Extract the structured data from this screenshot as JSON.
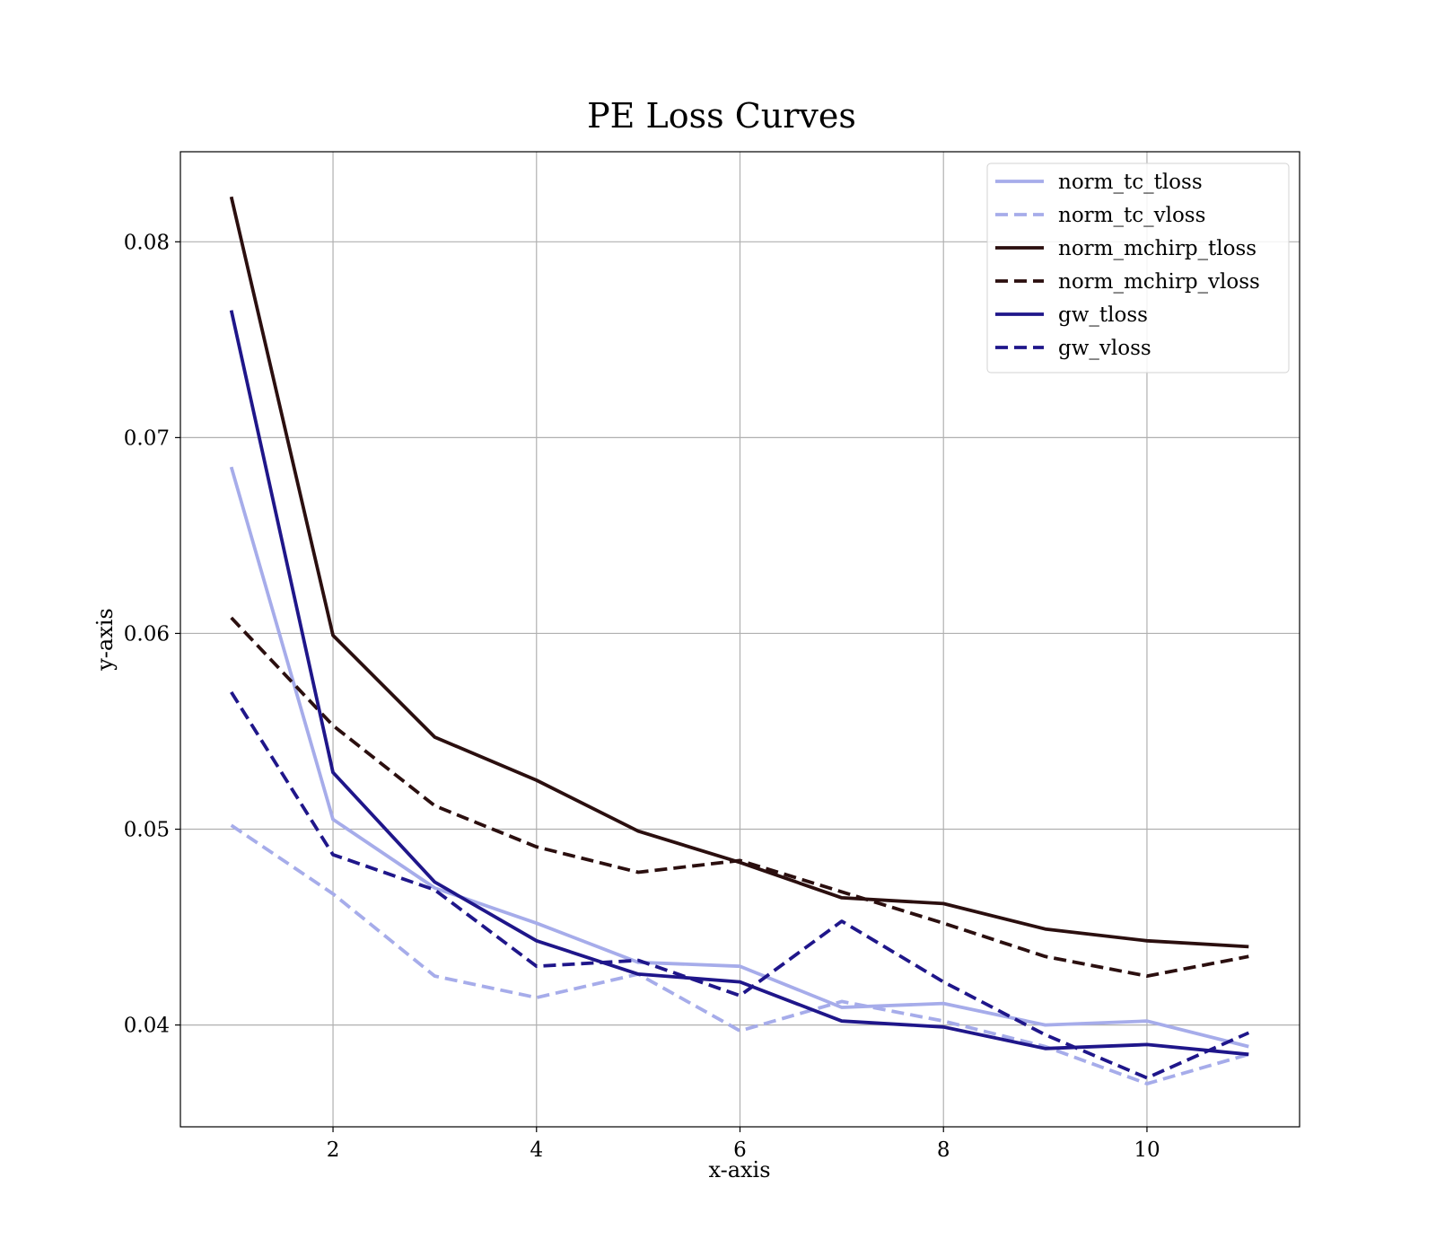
{
  "chart_data": {
    "type": "line",
    "title": "PE Loss Curves",
    "xlabel": "x-axis",
    "ylabel": "y-axis",
    "xlim": [
      0.5,
      11.5
    ],
    "ylim": [
      0.0348,
      0.0846
    ],
    "xticks": [
      2,
      4,
      6,
      8,
      10
    ],
    "yticks": [
      0.04,
      0.05,
      0.06,
      0.07,
      0.08
    ],
    "xtick_labels": [
      "2",
      "4",
      "6",
      "8",
      "10"
    ],
    "ytick_labels": [
      "0.04",
      "0.05",
      "0.06",
      "0.07",
      "0.08"
    ],
    "grid": true,
    "legend_position": "top-right",
    "x": [
      1,
      2,
      3,
      4,
      5,
      6,
      7,
      8,
      9,
      10,
      11
    ],
    "series": [
      {
        "name": "norm_tc_tloss",
        "color": "#a6acea",
        "dash": "solid",
        "values": [
          0.0685,
          0.0505,
          0.047,
          0.0452,
          0.0432,
          0.043,
          0.0409,
          0.0411,
          0.04,
          0.0402,
          0.0389
        ]
      },
      {
        "name": "norm_tc_vloss",
        "color": "#a6acea",
        "dash": "dashed",
        "values": [
          0.0502,
          0.0467,
          0.0425,
          0.0414,
          0.0426,
          0.0397,
          0.0412,
          0.0402,
          0.0389,
          0.037,
          0.0385
        ]
      },
      {
        "name": "norm_mchirp_tloss",
        "color": "#2b0f0f",
        "dash": "solid",
        "values": [
          0.0823,
          0.0599,
          0.0547,
          0.0525,
          0.0499,
          0.0483,
          0.0465,
          0.0462,
          0.0449,
          0.0443,
          0.044
        ]
      },
      {
        "name": "norm_mchirp_vloss",
        "color": "#2b0f0f",
        "dash": "dashed",
        "values": [
          0.0608,
          0.0553,
          0.0512,
          0.0491,
          0.0478,
          0.0484,
          0.0468,
          0.0452,
          0.0435,
          0.0425,
          0.0435
        ]
      },
      {
        "name": "gw_tloss",
        "color": "#1f168a",
        "dash": "solid",
        "values": [
          0.0765,
          0.0529,
          0.0473,
          0.0443,
          0.0426,
          0.0422,
          0.0402,
          0.0399,
          0.0388,
          0.039,
          0.0385
        ]
      },
      {
        "name": "gw_vloss",
        "color": "#1f168a",
        "dash": "dashed",
        "values": [
          0.057,
          0.0487,
          0.0469,
          0.043,
          0.0433,
          0.0415,
          0.0453,
          0.0422,
          0.0395,
          0.0373,
          0.0396
        ]
      }
    ]
  }
}
